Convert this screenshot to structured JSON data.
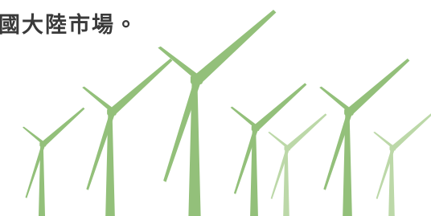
{
  "text": "國大陸市場。"
}
